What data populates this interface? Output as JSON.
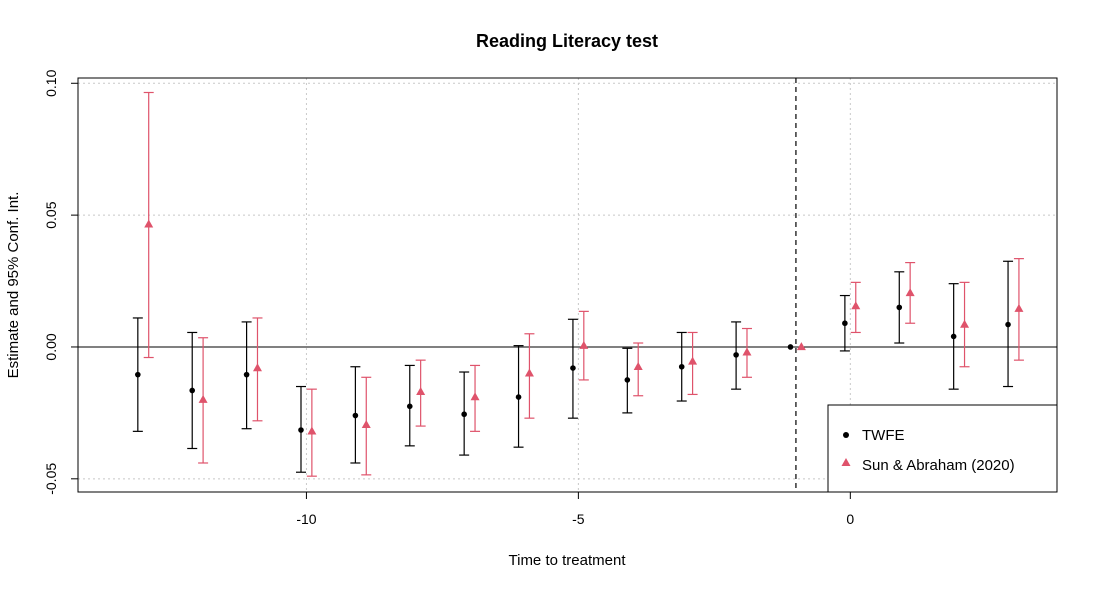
{
  "chart_data": {
    "type": "scatter",
    "title": "Reading Literacy test",
    "xlabel": "Time to treatment",
    "ylabel": "Estimate and 95% Conf. Int.",
    "xlim": [
      -14.2,
      3.8
    ],
    "ylim": [
      -0.055,
      0.102
    ],
    "xticks": [
      -10,
      -5,
      0
    ],
    "xtick_labels": [
      "-10",
      "-5",
      "0"
    ],
    "yticks": [
      0.1,
      0.05,
      0.0,
      -0.05
    ],
    "ytick_labels": [
      "0.10",
      "0.05",
      "0.00",
      "-0.05"
    ],
    "grid": true,
    "reference_lines": {
      "horizontal": 0,
      "vertical_dashed": -1
    },
    "legend_position": "bottom-right",
    "series": [
      {
        "name": "TWFE",
        "marker": "circle",
        "color": "#000000",
        "offset": -0.1,
        "points": [
          {
            "x": -13,
            "y": -0.0105,
            "lo": -0.032,
            "hi": 0.011
          },
          {
            "x": -12,
            "y": -0.0165,
            "lo": -0.0385,
            "hi": 0.0055
          },
          {
            "x": -11,
            "y": -0.0105,
            "lo": -0.031,
            "hi": 0.0095
          },
          {
            "x": -10,
            "y": -0.0315,
            "lo": -0.0475,
            "hi": -0.015
          },
          {
            "x": -9,
            "y": -0.026,
            "lo": -0.044,
            "hi": -0.0075
          },
          {
            "x": -8,
            "y": -0.0225,
            "lo": -0.0375,
            "hi": -0.007
          },
          {
            "x": -7,
            "y": -0.0255,
            "lo": -0.041,
            "hi": -0.0095
          },
          {
            "x": -6,
            "y": -0.019,
            "lo": -0.038,
            "hi": 0.0005
          },
          {
            "x": -5,
            "y": -0.008,
            "lo": -0.027,
            "hi": 0.0105
          },
          {
            "x": -4,
            "y": -0.0125,
            "lo": -0.025,
            "hi": -0.0005
          },
          {
            "x": -3,
            "y": -0.0075,
            "lo": -0.0205,
            "hi": 0.0055
          },
          {
            "x": -2,
            "y": -0.003,
            "lo": -0.016,
            "hi": 0.0095
          },
          {
            "x": -1,
            "y": 0.0,
            "lo": 0.0,
            "hi": 0.0
          },
          {
            "x": 0,
            "y": 0.009,
            "lo": -0.0015,
            "hi": 0.0195
          },
          {
            "x": 1,
            "y": 0.015,
            "lo": 0.0015,
            "hi": 0.0285
          },
          {
            "x": 2,
            "y": 0.004,
            "lo": -0.016,
            "hi": 0.024
          },
          {
            "x": 3,
            "y": 0.0085,
            "lo": -0.015,
            "hi": 0.0325
          }
        ]
      },
      {
        "name": "Sun & Abraham (2020)",
        "marker": "triangle",
        "color": "#df536b",
        "offset": 0.1,
        "points": [
          {
            "x": -13,
            "y": 0.0465,
            "lo": -0.004,
            "hi": 0.0965
          },
          {
            "x": -12,
            "y": -0.02,
            "lo": -0.044,
            "hi": 0.0035
          },
          {
            "x": -11,
            "y": -0.008,
            "lo": -0.028,
            "hi": 0.011
          },
          {
            "x": -10,
            "y": -0.032,
            "lo": -0.049,
            "hi": -0.016
          },
          {
            "x": -9,
            "y": -0.0295,
            "lo": -0.0485,
            "hi": -0.0115
          },
          {
            "x": -8,
            "y": -0.017,
            "lo": -0.03,
            "hi": -0.005
          },
          {
            "x": -7,
            "y": -0.019,
            "lo": -0.032,
            "hi": -0.007
          },
          {
            "x": -6,
            "y": -0.01,
            "lo": -0.027,
            "hi": 0.005
          },
          {
            "x": -5,
            "y": 0.0005,
            "lo": -0.0125,
            "hi": 0.0135
          },
          {
            "x": -4,
            "y": -0.0075,
            "lo": -0.0185,
            "hi": 0.0015
          },
          {
            "x": -3,
            "y": -0.0055,
            "lo": -0.018,
            "hi": 0.0055
          },
          {
            "x": -2,
            "y": -0.002,
            "lo": -0.0115,
            "hi": 0.007
          },
          {
            "x": -1,
            "y": 0.0,
            "lo": 0.0,
            "hi": 0.0
          },
          {
            "x": 0,
            "y": 0.0155,
            "lo": 0.0055,
            "hi": 0.0245
          },
          {
            "x": 1,
            "y": 0.0205,
            "lo": 0.009,
            "hi": 0.032
          },
          {
            "x": 2,
            "y": 0.0085,
            "lo": -0.0075,
            "hi": 0.0245
          },
          {
            "x": 3,
            "y": 0.0145,
            "lo": -0.005,
            "hi": 0.0335
          }
        ]
      }
    ]
  }
}
